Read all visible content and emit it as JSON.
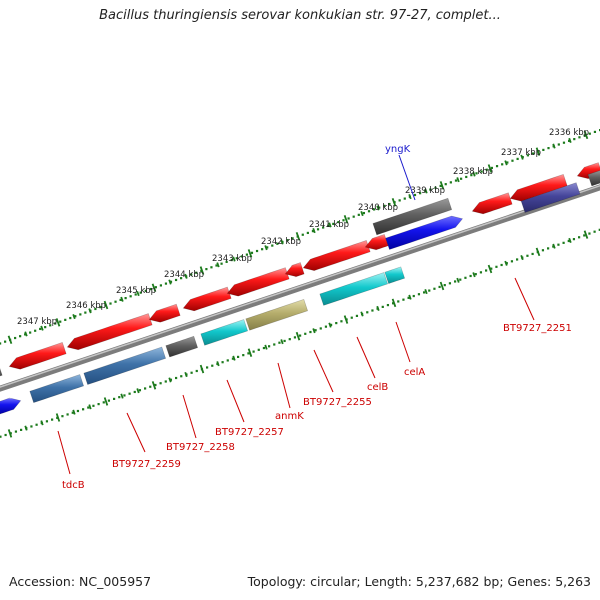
{
  "title": "Bacillus thuringiensis serovar konkukian str. 97-27, complet...",
  "footer": {
    "accession": "Accession: NC_005957",
    "summary": "Topology: circular; Length: 5,237,682 bp; Genes: 5,263"
  },
  "colors": {
    "backbone": "#8a8a8a",
    "ticks": "#1c7a1c",
    "label_red": "#cc0000",
    "label_blue": "#1a1acc",
    "gene_red": "#e80c0c",
    "gene_grey": "#555555",
    "gene_blue": "#1010e0",
    "gene_steel": "#3a6fa8",
    "gene_cyan": "#10c8cc",
    "gene_khaki": "#b8b070",
    "gene_navy": "#404090"
  },
  "ruler": {
    "unit": "kbp",
    "labels": [
      "2336 kbp",
      "2337 kbp",
      "2338 kbp",
      "2339 kbp",
      "2340 kbp",
      "2341 kbp",
      "2342 kbp",
      "2343 kbp",
      "2344 kbp",
      "2345 kbp",
      "2346 kbp",
      "2347 kbp"
    ]
  },
  "gene_labels": [
    {
      "text": "yngK",
      "color": "blue"
    },
    {
      "text": "BT9727_2251",
      "color": "red"
    },
    {
      "text": "celA",
      "color": "red"
    },
    {
      "text": "celB",
      "color": "red"
    },
    {
      "text": "BT9727_2255",
      "color": "red"
    },
    {
      "text": "anmK",
      "color": "red"
    },
    {
      "text": "BT9727_2257",
      "color": "red"
    },
    {
      "text": "BT9727_2258",
      "color": "red"
    },
    {
      "text": "BT9727_2259",
      "color": "red"
    },
    {
      "text": "tdcB",
      "color": "red"
    }
  ]
}
